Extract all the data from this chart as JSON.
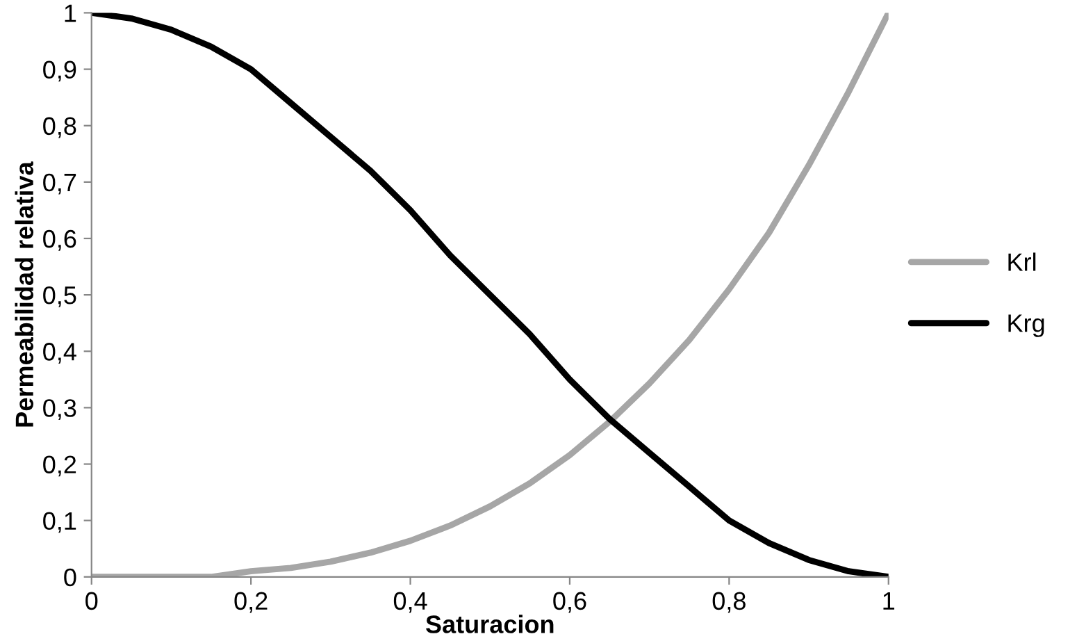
{
  "chart_data": {
    "type": "line",
    "xlabel": "Saturacion",
    "ylabel": "Permeabilidad relativa",
    "x": [
      0,
      0.05,
      0.1,
      0.15,
      0.2,
      0.25,
      0.3,
      0.35,
      0.4,
      0.45,
      0.5,
      0.55,
      0.6,
      0.65,
      0.7,
      0.75,
      0.8,
      0.85,
      0.9,
      0.95,
      1
    ],
    "series": [
      {
        "name": "Krl",
        "color": "#a6a6a6",
        "values": [
          0,
          0,
          0,
          0,
          0.01,
          0.016,
          0.027,
          0.043,
          0.064,
          0.091,
          0.125,
          0.166,
          0.216,
          0.275,
          0.343,
          0.42,
          0.51,
          0.61,
          0.73,
          0.86,
          1
        ]
      },
      {
        "name": "Krg",
        "color": "#000000",
        "values": [
          1,
          0.99,
          0.97,
          0.94,
          0.9,
          0.84,
          0.78,
          0.72,
          0.65,
          0.57,
          0.5,
          0.43,
          0.35,
          0.28,
          0.22,
          0.16,
          0.1,
          0.06,
          0.03,
          0.01,
          0
        ]
      }
    ],
    "xlim": [
      0,
      1
    ],
    "ylim": [
      0,
      1
    ],
    "xticks": [
      {
        "value": 0,
        "label": "0"
      },
      {
        "value": 0.2,
        "label": "0,2"
      },
      {
        "value": 0.4,
        "label": "0,4"
      },
      {
        "value": 0.6,
        "label": "0,6"
      },
      {
        "value": 0.8,
        "label": "0,8"
      },
      {
        "value": 1,
        "label": "1"
      }
    ],
    "yticks": [
      {
        "value": 0,
        "label": "0"
      },
      {
        "value": 0.1,
        "label": "0,1"
      },
      {
        "value": 0.2,
        "label": "0,2"
      },
      {
        "value": 0.3,
        "label": "0,3"
      },
      {
        "value": 0.4,
        "label": "0,4"
      },
      {
        "value": 0.5,
        "label": "0,5"
      },
      {
        "value": 0.6,
        "label": "0,6"
      },
      {
        "value": 0.7,
        "label": "0,7"
      },
      {
        "value": 0.8,
        "label": "0,8"
      },
      {
        "value": 0.9,
        "label": "0,9"
      },
      {
        "value": 1,
        "label": "1"
      }
    ],
    "grid": false,
    "legend": "right",
    "marker": "none",
    "line_style": "solid"
  }
}
